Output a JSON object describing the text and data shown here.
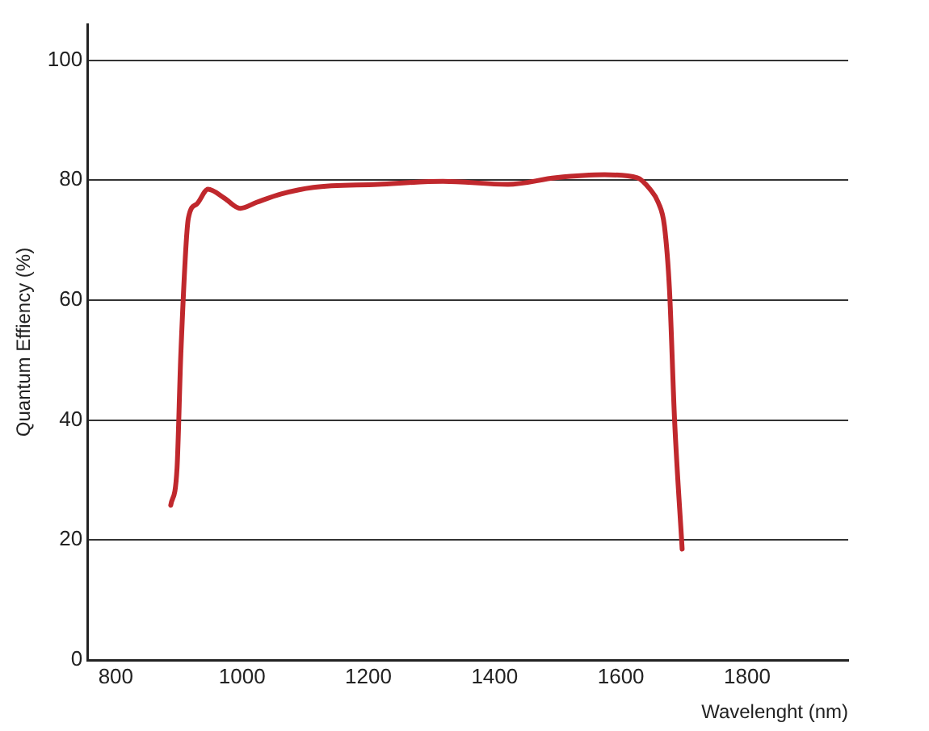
{
  "chart_data": {
    "type": "line",
    "xlabel": "Wavelenght (nm)",
    "ylabel": "Quantum Effiency (%)",
    "x": [
      887,
      897,
      903,
      915,
      928,
      946,
      972,
      997,
      1023,
      1062,
      1113,
      1215,
      1318,
      1421,
      1497,
      1574,
      1626,
      1646,
      1659,
      1669,
      1677,
      1685,
      1697
    ],
    "series": [
      {
        "color": "#c0282d",
        "values": [
          25.8,
          32,
          51,
          73.7,
          76,
          78.5,
          77,
          75.3,
          76.3,
          77.7,
          78.8,
          79.3,
          79.8,
          79.3,
          80.4,
          80.9,
          80.4,
          78.5,
          76.3,
          72.3,
          61.6,
          40,
          18.5
        ]
      }
    ],
    "xlim": [
      755,
      1960
    ],
    "xticks": [
      800,
      1000,
      1200,
      1400,
      1600,
      1800
    ],
    "ylim": [
      0,
      106
    ],
    "yticks": [
      0,
      20,
      40,
      60,
      80,
      100
    ],
    "grid": "y",
    "legend": false,
    "marker": "none",
    "line_style": "solid"
  }
}
